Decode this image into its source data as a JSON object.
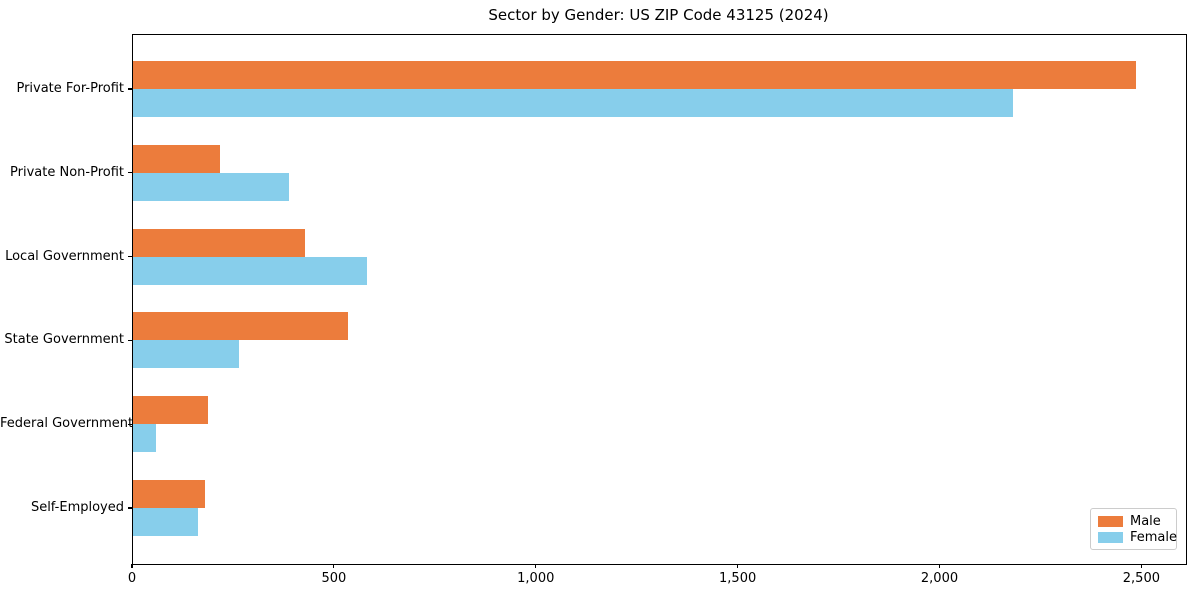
{
  "chart_data": {
    "type": "bar",
    "orientation": "horizontal",
    "title": "Sector by Gender: US ZIP Code 43125 (2024)",
    "categories": [
      "Private For-Profit",
      "Private Non-Profit",
      "Local Government",
      "State Government",
      "Federal Government",
      "Self-Employed"
    ],
    "series": [
      {
        "name": "Male",
        "color": "#ec7c3c",
        "values": [
          2483,
          215,
          426,
          532,
          186,
          178
        ]
      },
      {
        "name": "Female",
        "color": "#87ceeb",
        "values": [
          2180,
          386,
          579,
          262,
          57,
          161
        ]
      }
    ],
    "xlim": [
      0,
      2608
    ],
    "xticks": [
      0,
      500,
      1000,
      1500,
      2000,
      2500
    ],
    "xtick_labels": [
      "0",
      "500",
      "1,000",
      "1,500",
      "2,000",
      "2,500"
    ],
    "ylabel": "",
    "xlabel": "",
    "grid": false,
    "legend_position": "lower right"
  }
}
